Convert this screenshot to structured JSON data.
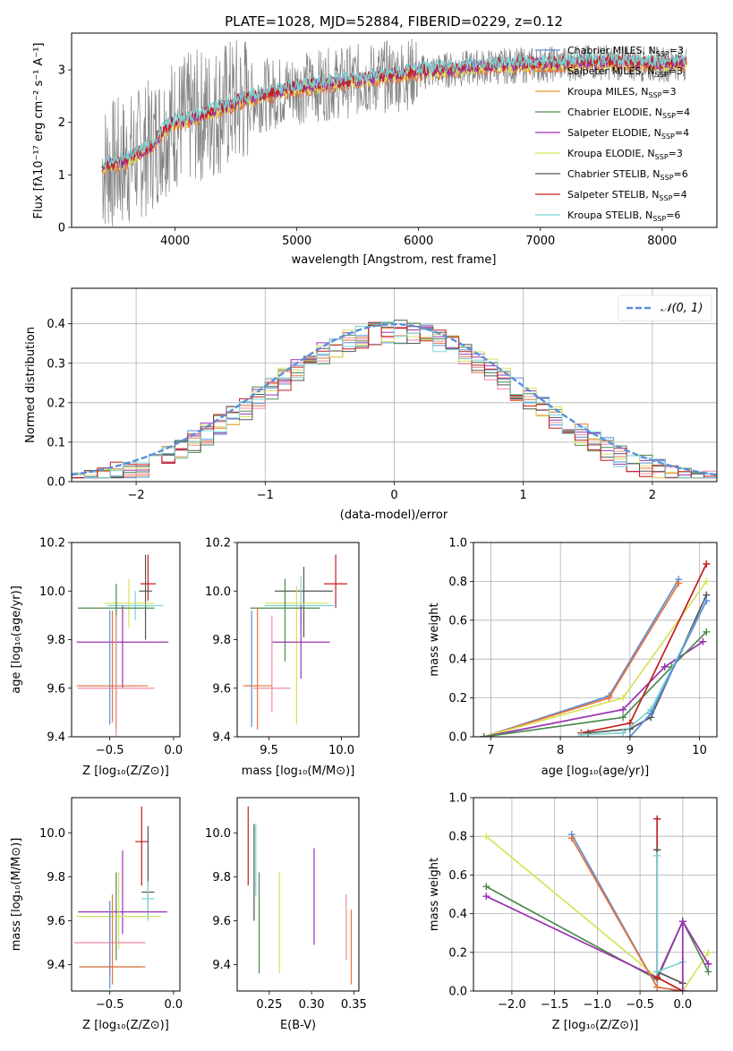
{
  "colors": {
    "chabrier_miles": "#5a8fd8",
    "salpeter_miles": "#e8743a",
    "kroupa_miles": "#e89a30",
    "chabrier_elodie": "#4c8a4c",
    "salpeter_elodie": "#9b30b0",
    "kroupa_elodie": "#d8e25a",
    "chabrier_stelib": "#555555",
    "salpeter_stelib": "#c41e1e",
    "kroupa_stelib": "#7ad4d4",
    "flux_data": "#808080",
    "normal_curve": "#5b8fd8",
    "extra_pink": "#f08aa0",
    "extra_orange": "#e8743a"
  },
  "chart_data": [
    {
      "id": "spectrum",
      "type": "line",
      "title": "PLATE=1028, MJD=52884, FIBERID=0229, z=0.12",
      "xlabel": "wavelength [Angstrom, rest frame]",
      "ylabel": "Flux [fλ10⁻¹⁷ erg cm⁻² s⁻¹ A⁻¹]",
      "xlim": [
        3150,
        8450
      ],
      "ylim": [
        0,
        3.7
      ],
      "xticks": [
        4000,
        5000,
        6000,
        7000,
        8000
      ],
      "yticks": [
        0,
        1,
        2,
        3
      ],
      "legend_position": "top-right",
      "series": [
        {
          "name": "Chabrier MILES, N",
          "sub": "SSP",
          "suffix": "=3",
          "color_key": "chabrier_miles"
        },
        {
          "name": "Salpeter MILES, N",
          "sub": "SSP",
          "suffix": "=3",
          "color_key": "salpeter_miles"
        },
        {
          "name": "Kroupa MILES, N",
          "sub": "SSP",
          "suffix": "=3",
          "color_key": "kroupa_miles"
        },
        {
          "name": "Chabrier ELODIE, N",
          "sub": "SSP",
          "suffix": "=4",
          "color_key": "chabrier_elodie"
        },
        {
          "name": "Salpeter ELODIE, N",
          "sub": "SSP",
          "suffix": "=4",
          "color_key": "salpeter_elodie"
        },
        {
          "name": "Kroupa ELODIE, N",
          "sub": "SSP",
          "suffix": "=3",
          "color_key": "kroupa_elodie"
        },
        {
          "name": "Chabrier STELIB, N",
          "sub": "SSP",
          "suffix": "=6",
          "color_key": "chabrier_stelib"
        },
        {
          "name": "Salpeter STELIB, N",
          "sub": "SSP",
          "suffix": "=4",
          "color_key": "salpeter_stelib"
        },
        {
          "name": "Kroupa STELIB, N",
          "sub": "SSP",
          "suffix": "=6",
          "color_key": "kroupa_stelib"
        }
      ],
      "continuum_model": {
        "x": [
          3400,
          3600,
          3800,
          3950,
          4100,
          4300,
          4600,
          5000,
          5500,
          6000,
          6500,
          7000,
          7500,
          8000,
          8200
        ],
        "y": [
          1.15,
          1.25,
          1.55,
          1.95,
          2.05,
          2.2,
          2.45,
          2.65,
          2.8,
          2.95,
          3.05,
          3.1,
          3.15,
          3.1,
          3.15
        ]
      }
    },
    {
      "id": "residuals",
      "type": "histogram",
      "xlabel": "(data-model)/error",
      "ylabel": "Normed distribution",
      "xlim": [
        -2.5,
        2.5
      ],
      "ylim": [
        0,
        0.49
      ],
      "xticks": [
        -2,
        -1,
        0,
        1,
        2
      ],
      "yticks": [
        0.0,
        0.1,
        0.2,
        0.3,
        0.4
      ],
      "grid": true,
      "legend": "𝒩(0, 1)",
      "legend_position": "top-right",
      "bin_width": 0.1
    },
    {
      "id": "age_vs_Z",
      "type": "scatter",
      "xlabel": "Z [log₁₀(Z/Z⊙)]",
      "ylabel": "age  [log₁₀(age/yr)]",
      "xlim": [
        -0.8,
        0.05
      ],
      "ylim": [
        9.4,
        10.2
      ],
      "xticks": [
        -0.5,
        0.0
      ],
      "yticks": [
        9.4,
        9.6,
        9.8,
        10.0,
        10.2
      ],
      "points": [
        {
          "x": -0.2,
          "y": 10.03,
          "xerr": 0.06,
          "yerr": [
            0.07,
            0.12
          ],
          "color_key": "salpeter_stelib"
        },
        {
          "x": -0.22,
          "y": 10.0,
          "xerr": 0.05,
          "yerr": [
            0.2,
            0.15
          ],
          "color_key": "chabrier_stelib"
        },
        {
          "x": -0.35,
          "y": 9.95,
          "xerr": 0.2,
          "yerr": [
            0.1,
            0.1
          ],
          "color_key": "kroupa_elodie"
        },
        {
          "x": -0.3,
          "y": 9.94,
          "xerr": 0.22,
          "yerr": [
            0.06,
            0.06
          ],
          "color_key": "kroupa_stelib"
        },
        {
          "x": -0.45,
          "y": 9.93,
          "xerr": 0.3,
          "yerr": [
            0.5,
            0.1
          ],
          "color_key": "chabrier_elodie"
        },
        {
          "x": -0.4,
          "y": 9.79,
          "xerr": 0.36,
          "yerr": [
            0.19,
            0.15
          ],
          "color_key": "salpeter_elodie"
        },
        {
          "x": -0.5,
          "y": 9.61,
          "xerr": 0.24,
          "yerr": [
            0.16,
            0.31
          ],
          "color_key": "chabrier_miles"
        },
        {
          "x": -0.48,
          "y": 9.61,
          "xerr": 0.28,
          "yerr": [
            0.15,
            0.31
          ],
          "color_key": "salpeter_miles"
        },
        {
          "x": -0.45,
          "y": 9.6,
          "xerr": 0.3,
          "yerr": [
            0.2,
            0.3
          ],
          "color_key": "extra_pink"
        }
      ]
    },
    {
      "id": "age_vs_mass",
      "type": "scatter",
      "xlabel": "mass [log₁₀(M/M⊙)]",
      "ylabel": "",
      "xlim": [
        9.28,
        10.12
      ],
      "ylim": [
        9.4,
        10.2
      ],
      "xticks": [
        9.5,
        10.0
      ],
      "yticks": [
        9.4,
        9.6,
        9.8,
        10.0,
        10.2
      ],
      "points": [
        {
          "x": 9.96,
          "y": 10.03,
          "xerr": 0.08,
          "yerr": [
            0.1,
            0.12
          ],
          "color_key": "salpeter_stelib"
        },
        {
          "x": 9.74,
          "y": 10.0,
          "xerr": 0.2,
          "yerr": [
            0.19,
            0.1
          ],
          "color_key": "chabrier_stelib"
        },
        {
          "x": 9.69,
          "y": 9.95,
          "xerr": 0.22,
          "yerr": [
            0.5,
            0.07
          ],
          "color_key": "kroupa_elodie"
        },
        {
          "x": 9.72,
          "y": 9.94,
          "xerr": 0.25,
          "yerr": [
            0.08,
            0.12
          ],
          "color_key": "kroupa_stelib"
        },
        {
          "x": 9.61,
          "y": 9.93,
          "xerr": 0.24,
          "yerr": [
            0.22,
            0.12
          ],
          "color_key": "chabrier_elodie"
        },
        {
          "x": 9.72,
          "y": 9.79,
          "xerr": 0.2,
          "yerr": [
            0.15,
            0.15
          ],
          "color_key": "salpeter_elodie"
        },
        {
          "x": 9.38,
          "y": 9.61,
          "xerr": 0.04,
          "yerr": [
            0.17,
            0.31
          ],
          "color_key": "chabrier_miles"
        },
        {
          "x": 9.42,
          "y": 9.61,
          "xerr": 0.1,
          "yerr": [
            0.18,
            0.32
          ],
          "color_key": "salpeter_miles"
        },
        {
          "x": 9.52,
          "y": 9.6,
          "xerr": 0.13,
          "yerr": [
            0.1,
            0.3
          ],
          "color_key": "extra_pink"
        }
      ]
    },
    {
      "id": "weight_vs_age",
      "type": "line",
      "xlabel": "age  [log₁₀(age/yr)]",
      "ylabel": "mass weight",
      "xlim": [
        6.75,
        10.25
      ],
      "ylim": [
        0,
        1
      ],
      "xticks": [
        7,
        8,
        9,
        10
      ],
      "yticks": [
        0.0,
        0.2,
        0.4,
        0.6,
        0.8,
        1.0
      ],
      "grid": true,
      "series": [
        {
          "color_key": "chabrier_miles",
          "x": [
            6.9,
            8.7,
            9.7
          ],
          "y": [
            0.0,
            0.21,
            0.81
          ]
        },
        {
          "color_key": "salpeter_miles",
          "x": [
            6.9,
            8.7,
            9.7
          ],
          "y": [
            0.0,
            0.2,
            0.79
          ]
        },
        {
          "color_key": "kroupa_elodie",
          "x": [
            6.9,
            8.9,
            10.1
          ],
          "y": [
            0.0,
            0.2,
            0.8
          ]
        },
        {
          "color_key": "salpeter_elodie",
          "x": [
            6.9,
            8.9,
            9.5,
            10.05
          ],
          "y": [
            0.0,
            0.14,
            0.36,
            0.49
          ]
        },
        {
          "color_key": "chabrier_elodie",
          "x": [
            6.9,
            8.9,
            9.6,
            10.1
          ],
          "y": [
            0.0,
            0.1,
            0.36,
            0.54
          ]
        },
        {
          "color_key": "salpeter_stelib",
          "x": [
            8.3,
            9.0,
            10.1
          ],
          "y": [
            0.02,
            0.07,
            0.89
          ]
        },
        {
          "color_key": "chabrier_stelib",
          "x": [
            8.4,
            9.0,
            9.3,
            10.1
          ],
          "y": [
            0.02,
            0.04,
            0.1,
            0.73
          ]
        },
        {
          "color_key": "kroupa_stelib",
          "x": [
            8.3,
            8.9,
            9.3,
            10.1
          ],
          "y": [
            0.01,
            0.02,
            0.14,
            0.7
          ]
        },
        {
          "color_key": "chabrier_miles",
          "x": [
            9.0,
            9.3,
            10.1
          ],
          "y": [
            0.0,
            0.12,
            0.7
          ]
        }
      ]
    },
    {
      "id": "mass_vs_Z",
      "type": "scatter",
      "xlabel": "Z [log₁₀(Z/Z⊙)]",
      "ylabel": "mass [log₁₀(M/M⊙)]",
      "xlim": [
        -0.8,
        0.05
      ],
      "ylim": [
        9.28,
        10.16
      ],
      "xticks": [
        -0.5,
        0.0
      ],
      "yticks": [
        9.4,
        9.6,
        9.8,
        10.0
      ],
      "points": [
        {
          "x": -0.25,
          "y": 9.96,
          "xerr": 0.05,
          "yerr": [
            0.2,
            0.16
          ],
          "color_key": "salpeter_stelib"
        },
        {
          "x": -0.2,
          "y": 9.73,
          "xerr": 0.05,
          "yerr": [
            0.12,
            0.3
          ],
          "color_key": "chabrier_stelib"
        },
        {
          "x": -0.2,
          "y": 9.7,
          "xerr": 0.05,
          "yerr": [
            0.1,
            0.08
          ],
          "color_key": "kroupa_stelib"
        },
        {
          "x": -0.4,
          "y": 9.64,
          "xerr": 0.35,
          "yerr": [
            0.1,
            0.28
          ],
          "color_key": "salpeter_elodie"
        },
        {
          "x": -0.45,
          "y": 9.62,
          "xerr": 0.3,
          "yerr": [
            0.2,
            0.2
          ],
          "color_key": "chabrier_elodie"
        },
        {
          "x": -0.43,
          "y": 9.62,
          "xerr": 0.33,
          "yerr": [
            0.15,
            0.2
          ],
          "color_key": "kroupa_elodie"
        },
        {
          "x": -0.5,
          "y": 9.5,
          "xerr": 0.28,
          "yerr": [
            0.15,
            0.15
          ],
          "color_key": "extra_pink"
        },
        {
          "x": -0.5,
          "y": 9.39,
          "xerr": 0.24,
          "yerr": [
            0.1,
            0.3
          ],
          "color_key": "chabrier_miles"
        },
        {
          "x": -0.48,
          "y": 9.39,
          "xerr": 0.26,
          "yerr": [
            0.08,
            0.33
          ],
          "color_key": "salpeter_miles"
        }
      ]
    },
    {
      "id": "mass_vs_ebv",
      "type": "scatter",
      "xlabel": "E(B-V)",
      "ylabel": "",
      "xlim": [
        0.212,
        0.356
      ],
      "ylim": [
        9.28,
        10.16
      ],
      "xticks": [
        0.25,
        0.3,
        0.35
      ],
      "yticks": [
        9.4,
        9.6,
        9.8,
        10.0
      ],
      "points": [
        {
          "x": 0.225,
          "y": 9.96,
          "yerr": [
            0.2,
            0.16
          ],
          "color_key": "salpeter_stelib"
        },
        {
          "x": 0.232,
          "y": 9.82,
          "yerr": [
            0.22,
            0.22
          ],
          "color_key": "chabrier_stelib"
        },
        {
          "x": 0.234,
          "y": 9.86,
          "yerr": [
            0.15,
            0.18
          ],
          "color_key": "kroupa_stelib"
        },
        {
          "x": 0.238,
          "y": 9.6,
          "yerr": [
            0.24,
            0.22
          ],
          "color_key": "chabrier_elodie"
        },
        {
          "x": 0.262,
          "y": 9.6,
          "yerr": [
            0.24,
            0.22
          ],
          "color_key": "kroupa_elodie"
        },
        {
          "x": 0.303,
          "y": 9.71,
          "yerr": [
            0.22,
            0.22
          ],
          "color_key": "salpeter_elodie"
        },
        {
          "x": 0.341,
          "y": 9.57,
          "yerr": [
            0.15,
            0.15
          ],
          "color_key": "extra_pink"
        },
        {
          "x": 0.347,
          "y": 9.48,
          "yerr": [
            0.17,
            0.17
          ],
          "color_key": "salpeter_miles"
        }
      ]
    },
    {
      "id": "weight_vs_Z",
      "type": "line",
      "xlabel": "Z [log₁₀(Z/Z⊙)]",
      "ylabel": "mass weight",
      "xlim": [
        -2.45,
        0.4
      ],
      "ylim": [
        0,
        1
      ],
      "xticks": [
        -2.0,
        -1.5,
        -1.0,
        -0.5,
        0.0
      ],
      "yticks": [
        0.0,
        0.2,
        0.4,
        0.6,
        0.8,
        1.0
      ],
      "grid": true,
      "series": [
        {
          "color_key": "kroupa_elodie",
          "x": [
            -2.3,
            -0.3,
            0.0,
            0.3
          ],
          "y": [
            0.8,
            0.07,
            0.0,
            0.2
          ]
        },
        {
          "color_key": "chabrier_elodie",
          "x": [
            -2.3,
            -0.3,
            0.0,
            0.3
          ],
          "y": [
            0.54,
            0.06,
            0.36,
            0.1
          ]
        },
        {
          "color_key": "salpeter_elodie",
          "x": [
            -2.3,
            -0.3,
            0.0,
            0.3
          ],
          "y": [
            0.49,
            0.07,
            0.36,
            0.14
          ]
        },
        {
          "color_key": "chabrier_miles",
          "x": [
            -1.3,
            -0.3,
            0.0
          ],
          "y": [
            0.81,
            0.02,
            0.0
          ]
        },
        {
          "color_key": "salpeter_miles",
          "x": [
            -1.3,
            -0.3,
            0.0
          ],
          "y": [
            0.79,
            0.02,
            0.0
          ]
        },
        {
          "color_key": "salpeter_stelib",
          "x": [
            -0.3,
            -0.3,
            -0.3,
            0.0
          ],
          "y": [
            0.89,
            0.73,
            0.07,
            0.0
          ]
        },
        {
          "color_key": "chabrier_stelib",
          "x": [
            -0.3,
            -0.3,
            0.0
          ],
          "y": [
            0.73,
            0.1,
            0.04
          ]
        },
        {
          "color_key": "kroupa_stelib",
          "x": [
            -0.3,
            -0.3,
            0.0,
            0.0
          ],
          "y": [
            0.7,
            0.1,
            0.15,
            0.0
          ]
        },
        {
          "color_key": "salpeter_elodie",
          "x": [
            0.0,
            0.0
          ],
          "y": [
            0.36,
            0.0
          ]
        }
      ]
    }
  ]
}
